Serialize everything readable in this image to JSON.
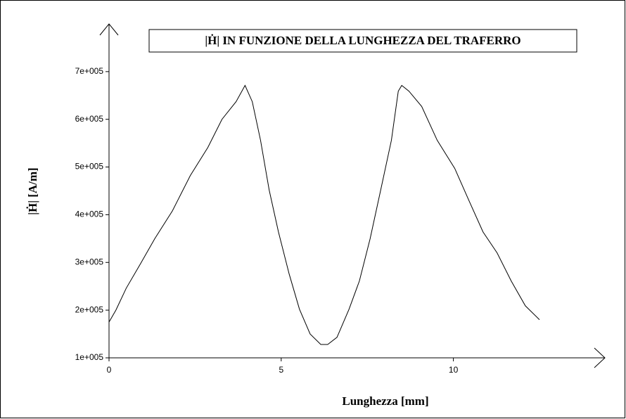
{
  "chart_data": {
    "type": "line",
    "title": "|Ḣ|  IN FUNZIONE DELLA LUNGHEZZA DEL TRAFERRO",
    "xlabel": "Lunghezza [mm]",
    "ylabel": "|Ḣ| [A/m]",
    "x": [
      0,
      0.2,
      0.5,
      0.92,
      1.33,
      1.84,
      2.36,
      2.87,
      3.28,
      3.69,
      3.95,
      4.16,
      4.4,
      4.65,
      4.92,
      5.23,
      5.53,
      5.84,
      6.15,
      6.35,
      6.62,
      6.97,
      7.27,
      7.58,
      7.89,
      8.2,
      8.4,
      8.5,
      8.71,
      9.08,
      9.53,
      10.04,
      10.45,
      10.86,
      11.27,
      11.68,
      12.09,
      12.5
    ],
    "series": [
      {
        "color": "#000000",
        "values": [
          175000,
          200000,
          246000,
          298000,
          350000,
          408000,
          482000,
          541000,
          600000,
          637000,
          671000,
          637000,
          556000,
          452000,
          364000,
          276000,
          202000,
          150000,
          128000,
          128000,
          143000,
          202000,
          261000,
          349000,
          452000,
          556000,
          659000,
          671000,
          659000,
          627000,
          556000,
          497000,
          430000,
          364000,
          320000,
          261000,
          209000,
          180000
        ]
      }
    ],
    "xlim": [
      0,
      14.4
    ],
    "ylim": [
      100000,
      800000
    ],
    "xticks": [
      0,
      5,
      10
    ],
    "yticks": [
      {
        "value": 100000,
        "label": "1e+005"
      },
      {
        "value": 200000,
        "label": "2e+005"
      },
      {
        "value": 300000,
        "label": "3e+005"
      },
      {
        "value": 400000,
        "label": "4e+005"
      },
      {
        "value": 500000,
        "label": "5e+005"
      },
      {
        "value": 600000,
        "label": "6e+005"
      },
      {
        "value": 700000,
        "label": "7e+005"
      }
    ]
  }
}
